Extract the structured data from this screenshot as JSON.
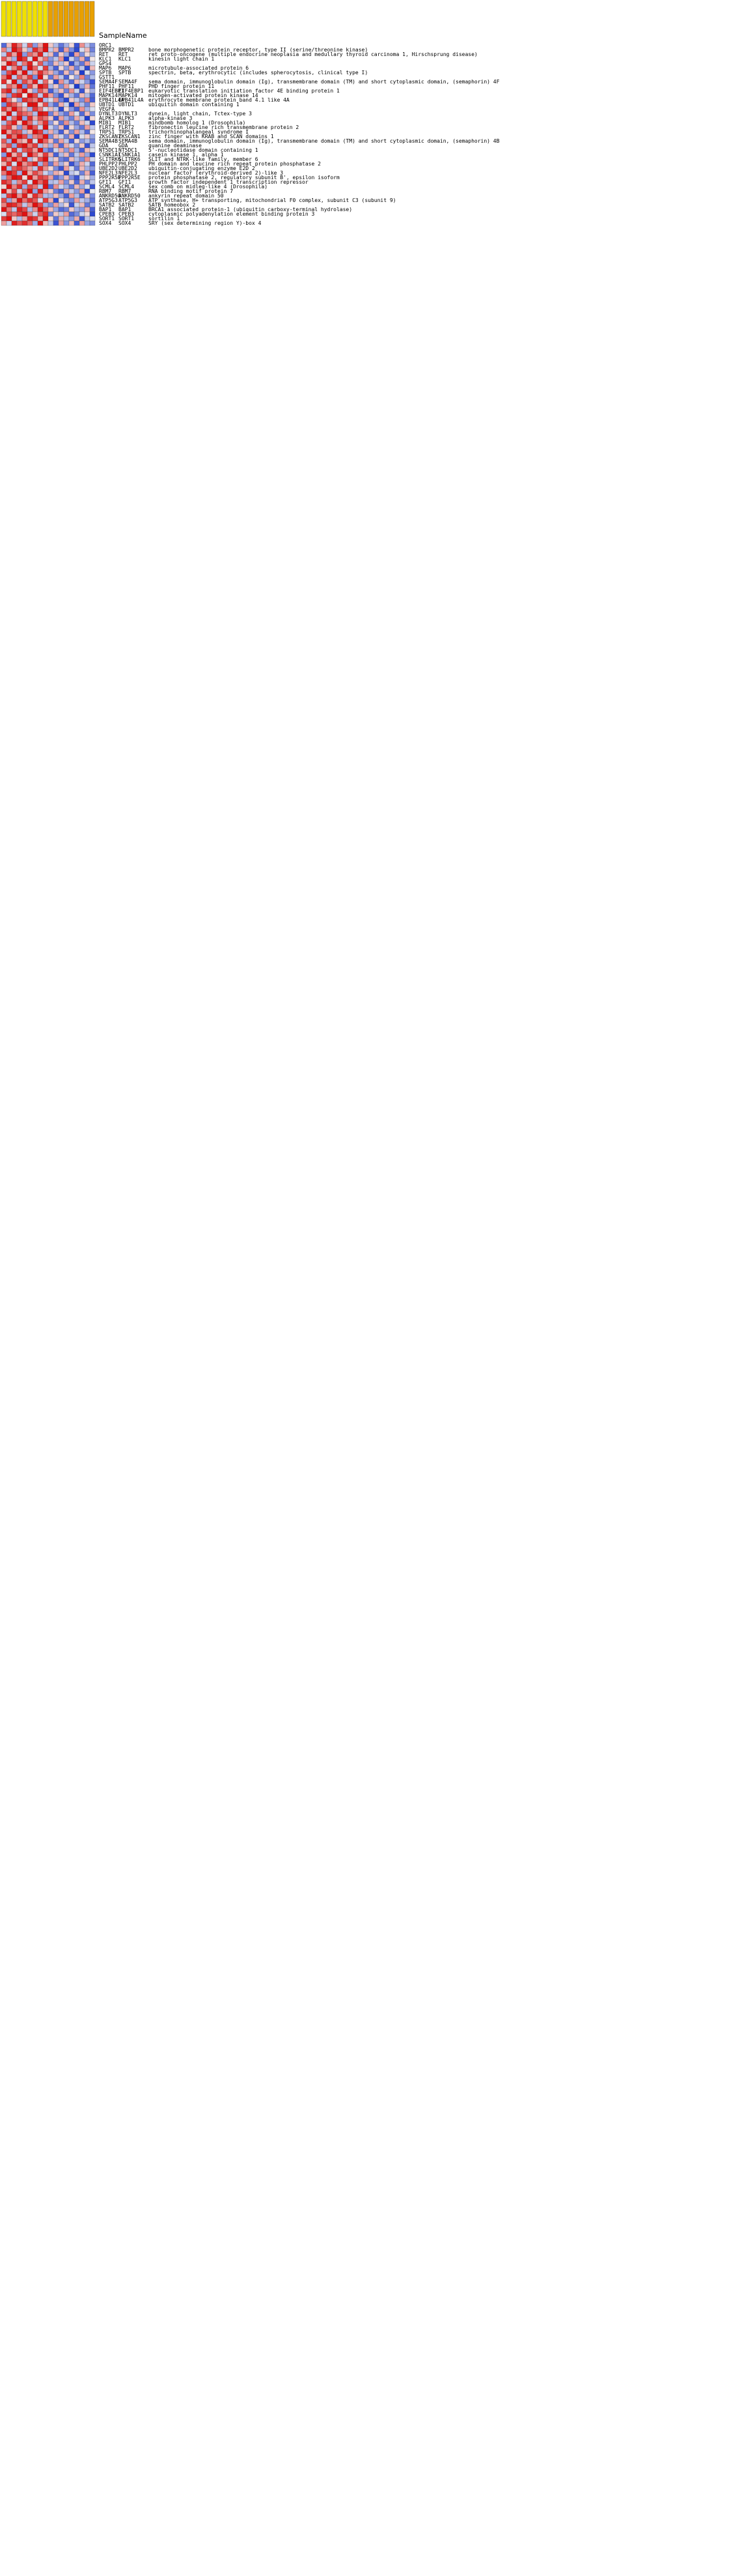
{
  "chart_data": {
    "type": "heatmap",
    "title": "",
    "header": {
      "sample_name_label": "SampleName"
    },
    "columns": [
      "",
      "",
      "",
      "",
      "",
      "",
      "",
      "",
      "",
      "",
      "",
      "",
      "",
      "",
      "",
      "",
      "",
      ""
    ],
    "column_groups": [
      {
        "count": 9,
        "color": "#f0e000"
      },
      {
        "count": 9,
        "color": "#e8a000"
      }
    ],
    "colorscale": {
      "low": "#1f3ccf",
      "mid": "#f4f4f4",
      "high": "#e01010"
    },
    "row_count_shown": 40,
    "rows": [
      {
        "symbol": "ORC1",
        "name": "",
        "values": [
          -1.2,
          0.4,
          1.5,
          0.9,
          -0.3,
          1.1,
          -0.8,
          0.6,
          1.8,
          0.3,
          -0.5,
          -1.1,
          -0.6,
          0.2,
          -1.4,
          0.7,
          -0.4,
          -0.9
        ]
      },
      {
        "symbol": "BMPR2",
        "name": "bone morphogenetic protein receptor, type II (serine/threonine kinase)",
        "values": [
          0.8,
          -0.5,
          1.7,
          1.2,
          0.3,
          -0.6,
          1.4,
          0.9,
          1.6,
          -0.4,
          0.5,
          -1.3,
          0.6,
          -0.9,
          -1.5,
          -0.2,
          0.4,
          -1.0
        ]
      },
      {
        "symbol": "RET",
        "name": "ret proto-oncogene (multiple endocrine neoplasia and medullary thyroid carcinoma 1, Hirschsprung disease)",
        "values": [
          -0.4,
          1.3,
          0.6,
          1.9,
          -0.8,
          1.0,
          0.7,
          1.5,
          -0.3,
          0.4,
          -1.2,
          0.3,
          -0.7,
          -1.5,
          0.6,
          -0.9,
          0.2,
          -0.6
        ]
      },
      {
        "symbol": "KLC1",
        "name": "kinesin light chain 1",
        "values": [
          1.1,
          0.5,
          -0.6,
          1.6,
          1.3,
          -0.2,
          1.8,
          0.4,
          0.9,
          -0.8,
          -0.4,
          0.7,
          -1.6,
          -0.3,
          -0.9,
          0.5,
          -1.2,
          0.1
        ]
      },
      {
        "symbol": "GPS4",
        "name": "",
        "values": [
          0.3,
          1.7,
          1.2,
          -0.4,
          0.9,
          1.5,
          0.2,
          1.1,
          -0.7,
          -1.0,
          0.4,
          -0.5,
          0.3,
          -1.4,
          -0.6,
          -1.1,
          0.6,
          -0.3
        ]
      },
      {
        "symbol": "MAP6",
        "name": "microtubule-associated protein 6",
        "values": [
          1.5,
          -0.3,
          0.8,
          1.4,
          -0.6,
          1.9,
          1.0,
          -0.2,
          1.3,
          -0.6,
          -1.3,
          0.2,
          -0.8,
          0.5,
          -1.0,
          -0.4,
          -1.5,
          0.4
        ]
      },
      {
        "symbol": "SPTB",
        "name": "spectrin, beta, erythrocytic (includes spherocytosis, clinical type I)",
        "values": [
          -0.7,
          1.2,
          1.6,
          0.5,
          1.8,
          -0.5,
          0.6,
          1.4,
          0.8,
          0.5,
          -0.7,
          -1.2,
          0.4,
          -0.9,
          0.3,
          -1.6,
          -0.2,
          -0.8
        ]
      },
      {
        "symbol": "GSTT1",
        "name": "",
        "values": [
          0.9,
          1.6,
          -0.4,
          1.1,
          0.6,
          1.3,
          -0.9,
          1.7,
          0.2,
          -1.1,
          0.6,
          -0.4,
          -1.3,
          0.1,
          -0.7,
          0.8,
          -1.0,
          -0.5
        ]
      },
      {
        "symbol": "SEMA4F",
        "name": "sema domain, immunoglobulin domain (Ig), transmembrane domain (TM) and short cytoplasmic domain, (semaphorin) 4F",
        "values": [
          1.4,
          0.2,
          1.9,
          -0.6,
          1.2,
          0.7,
          1.5,
          -0.3,
          1.0,
          0.2,
          -1.5,
          0.7,
          -0.5,
          -1.2,
          0.4,
          -0.3,
          -0.8,
          -1.4
        ]
      },
      {
        "symbol": "PHF11",
        "name": "PHD finger protein 11",
        "values": [
          -0.2,
          1.0,
          0.7,
          1.8,
          -0.9,
          1.2,
          0.4,
          1.6,
          1.3,
          -0.5,
          0.3,
          -0.9,
          0.6,
          -0.2,
          -1.6,
          -0.7,
          0.5,
          -1.1
        ]
      },
      {
        "symbol": "EIF4EBP1",
        "name": "eukaryotic translation initiation factor 4E binding protein 1",
        "values": [
          1.2,
          1.5,
          -0.5,
          0.9,
          1.7,
          0.3,
          -0.7,
          1.1,
          0.6,
          -1.3,
          -0.6,
          0.4,
          -1.0,
          0.7,
          -0.3,
          -1.4,
          0.2,
          -0.6
        ]
      },
      {
        "symbol": "MAPK14",
        "name": "mitogen-activated protein kinase 14",
        "values": [
          0.6,
          -0.8,
          1.3,
          1.5,
          0.1,
          1.8,
          1.2,
          -0.4,
          1.4,
          0.6,
          -0.9,
          -1.4,
          0.3,
          -0.6,
          -1.1,
          0.4,
          -0.5,
          -1.2
        ]
      },
      {
        "symbol": "EPB41L4A",
        "name": "erythrocyte membrane protein band 4.1 like 4A",
        "values": [
          1.7,
          0.9,
          0.2,
          -0.7,
          1.4,
          1.1,
          0.8,
          1.5,
          -0.5,
          -0.2,
          0.7,
          -1.0,
          -1.5,
          0.3,
          -0.4,
          -0.9,
          0.8,
          -1.3
        ]
      },
      {
        "symbol": "UBTD1",
        "name": "ubiquitin domain containing 1",
        "values": [
          -0.9,
          1.4,
          1.1,
          0.6,
          -0.2,
          1.6,
          1.9,
          0.3,
          1.2,
          -0.7,
          -1.2,
          0.5,
          -0.3,
          -1.6,
          0.6,
          -0.5,
          -1.0,
          0.3
        ]
      },
      {
        "symbol": "VEGFA",
        "name": "",
        "values": [
          1.3,
          0.7,
          1.8,
          1.0,
          0.5,
          -0.6,
          1.3,
          0.9,
          -0.2,
          0.4,
          -0.4,
          -1.5,
          0.2,
          -0.8,
          -1.3,
          0.7,
          -0.6,
          -0.2
        ]
      },
      {
        "symbol": "DYNLT3",
        "name": "dynein, light chain, Tctex-type 3",
        "values": [
          0.4,
          1.9,
          -0.3,
          1.3,
          1.0,
          0.8,
          -0.5,
          1.7,
          1.5,
          -1.0,
          0.5,
          -0.7,
          -1.1,
          0.6,
          -0.2,
          -1.2,
          0.4,
          -0.9
        ]
      },
      {
        "symbol": "ALPK3",
        "name": "alpha-kinase 3",
        "values": [
          1.6,
          -0.4,
          1.0,
          1.7,
          -0.7,
          1.4,
          0.5,
          1.2,
          0.9,
          0.3,
          -1.4,
          0.6,
          -0.6,
          -1.0,
          0.5,
          -0.4,
          -1.6,
          0.2
        ]
      },
      {
        "symbol": "MIB1",
        "name": "mindbomb homolog 1 (Drosophila)",
        "values": [
          -0.5,
          1.1,
          1.5,
          0.3,
          1.9,
          1.0,
          -0.4,
          0.7,
          1.4,
          -0.8,
          0.2,
          -1.1,
          0.7,
          -0.5,
          -1.0,
          0.4,
          -0.3,
          -1.5
        ]
      },
      {
        "symbol": "FLRT2",
        "name": "fibronectin leucine rich transmembrane protein 2",
        "values": [
          1.0,
          1.3,
          0.4,
          -0.8,
          0.8,
          1.7,
          1.1,
          -0.3,
          1.6,
          -0.3,
          -0.8,
          0.4,
          -1.4,
          0.2,
          -0.7,
          -1.1,
          0.6,
          -0.4
        ]
      },
      {
        "symbol": "TRPS1",
        "name": "trichorhinophalangeal syndrome I",
        "values": [
          1.8,
          0.6,
          1.2,
          1.1,
          -0.5,
          0.4,
          1.6,
          1.3,
          -0.6,
          0.5,
          -0.6,
          -1.3,
          0.3,
          -0.9,
          0.6,
          -0.5,
          -1.2,
          0.1
        ]
      },
      {
        "symbol": "ZKSCAN1",
        "name": "zinc finger with KRAB and SCAN domains 1",
        "values": [
          -0.3,
          1.5,
          0.9,
          1.6,
          1.2,
          -0.7,
          0.8,
          1.0,
          1.7,
          -0.9,
          0.4,
          -0.3,
          -1.0,
          0.5,
          -1.5,
          -0.2,
          0.3,
          -0.7
        ]
      },
      {
        "symbol": "SEMA4B",
        "name": "sema domain, immunoglobulin domain (Ig), transmembrane domain (TM) and short cytoplasmic domain, (semaphorin) 4B",
        "values": [
          1.1,
          -0.6,
          1.7,
          0.7,
          0.4,
          1.5,
          -0.2,
          1.8,
          1.0,
          0.4,
          -1.1,
          0.6,
          -0.4,
          -1.3,
          0.2,
          -0.8,
          -0.5,
          -1.0
        ]
      },
      {
        "symbol": "GDA",
        "name": "guanine deaminase",
        "values": [
          0.7,
          1.2,
          -0.7,
          1.4,
          1.6,
          0.9,
          1.3,
          -0.5,
          0.5,
          -0.6,
          0.6,
          -1.2,
          0.5,
          -0.3,
          -0.9,
          0.3,
          -1.4,
          -0.4
        ]
      },
      {
        "symbol": "NT5DC1",
        "name": "5'-nucleotidase domain containing 1",
        "values": [
          1.5,
          0.3,
          1.4,
          -0.4,
          1.1,
          1.3,
          0.6,
          1.6,
          -0.8,
          -1.2,
          -0.3,
          0.5,
          -0.8,
          0.7,
          -0.6,
          -1.3,
          0.4,
          -0.2
        ]
      },
      {
        "symbol": "CSNK1A1",
        "name": "casein kinase 1, alpha 1",
        "values": [
          -0.8,
          1.8,
          0.5,
          1.2,
          -0.3,
          1.6,
          1.0,
          0.4,
          1.3,
          0.5,
          -1.3,
          -0.5,
          0.4,
          -1.1,
          -0.4,
          0.6,
          -0.7,
          -1.5
        ]
      },
      {
        "symbol": "SLITRK6",
        "name": "SLIT and NTRK-like family, member 6",
        "values": [
          1.3,
          0.8,
          1.6,
          0.9,
          1.5,
          -0.5,
          0.3,
          1.2,
          1.8,
          -0.4,
          0.3,
          -1.0,
          -1.2,
          0.4,
          -0.5,
          -0.9,
          0.7,
          -0.3
        ]
      },
      {
        "symbol": "PHLPP2",
        "name": "PH domain and leucine rich repeat protein phosphatase 2",
        "values": [
          0.5,
          1.4,
          -0.2,
          1.7,
          0.7,
          1.1,
          1.5,
          -0.6,
          1.0,
          -1.1,
          0.6,
          -0.6,
          0.3,
          -1.4,
          -0.8,
          0.5,
          -0.3,
          -1.2
        ]
      },
      {
        "symbol": "UBE2D2",
        "name": "ubiquitin-conjugating enzyme E2D 2",
        "values": [
          1.7,
          -0.5,
          1.1,
          1.3,
          1.0,
          0.6,
          -0.4,
          1.4,
          0.7,
          0.2,
          -0.9,
          -1.4,
          0.6,
          -0.2,
          -1.1,
          0.4,
          -0.6,
          -0.8
        ]
      },
      {
        "symbol": "NFE2L3",
        "name": "nuclear factor (erythroid-derived 2)-like 3",
        "values": [
          0.9,
          1.6,
          1.3,
          -0.6,
          1.8,
          0.5,
          1.2,
          0.8,
          -0.3,
          -0.7,
          0.5,
          0.3,
          -1.5,
          -0.4,
          -0.2,
          -1.0,
          0.5,
          -1.3
        ]
      },
      {
        "symbol": "PPP2R5E",
        "name": "protein phosphatase 2, regulatory subunit B', epsilon isoform",
        "values": [
          -0.6,
          1.0,
          1.7,
          1.5,
          0.2,
          1.9,
          0.6,
          1.3,
          1.1,
          0.6,
          -1.2,
          -0.8,
          0.4,
          -0.9,
          -1.4,
          -0.3,
          0.2,
          -0.6
        ]
      },
      {
        "symbol": "GFI1",
        "name": "growth factor independent 1 transcription repressor",
        "values": [
          1.4,
          1.1,
          -0.5,
          0.8,
          1.3,
          -0.2,
          1.7,
          1.0,
          1.5,
          -0.5,
          -0.4,
          0.6,
          -0.9,
          0.3,
          -1.2,
          0.5,
          -1.0,
          -0.4
        ]
      },
      {
        "symbol": "SCML4",
        "name": "sex comb on midleg-like 4 (Drosophila)",
        "values": [
          0.2,
          1.7,
          0.8,
          1.4,
          -0.6,
          1.2,
          0.9,
          -0.4,
          1.6,
          -1.2,
          0.7,
          -0.3,
          -0.6,
          -1.1,
          0.4,
          -0.7,
          -0.2,
          -1.4
        ]
      },
      {
        "symbol": "RBM7",
        "name": "RNA binding motif protein 7",
        "values": [
          1.9,
          0.4,
          1.2,
          -0.3,
          1.0,
          1.6,
          -0.7,
          1.5,
          0.6,
          0.3,
          -1.0,
          -1.3,
          0.5,
          -0.4,
          -0.8,
          0.6,
          -1.5,
          -0.1
        ]
      },
      {
        "symbol": "ANKRD50",
        "name": "ankyrin repeat domain 50",
        "values": [
          -0.4,
          1.3,
          1.9,
          0.7,
          1.5,
          0.3,
          1.4,
          0.9,
          -0.5,
          -0.6,
          0.4,
          -0.7,
          -1.3,
          0.6,
          -0.5,
          -1.2,
          0.3,
          -0.9
        ]
      },
      {
        "symbol": "ATP5G3",
        "name": "ATP synthase, H+ transporting, mitochondrial F0 complex, subunit C3 (subunit 9)",
        "values": [
          1.2,
          -0.7,
          0.6,
          1.8,
          0.9,
          1.4,
          1.1,
          -0.2,
          1.3,
          0.5,
          -1.5,
          0.2,
          -0.7,
          -1.0,
          0.6,
          -0.4,
          -0.6,
          -1.1
        ]
      },
      {
        "symbol": "SATB2",
        "name": "SATB homeobox 2",
        "values": [
          0.8,
          1.5,
          1.4,
          1.0,
          -0.4,
          0.7,
          1.6,
          1.2,
          -0.6,
          -0.9,
          0.6,
          -0.5,
          0.2,
          -1.4,
          -0.3,
          0.4,
          -1.1,
          -0.6
        ]
      },
      {
        "symbol": "BAP1",
        "name": "BRCA1 associated protein-1 (ubiquitin carboxy-terminal hydrolase)",
        "values": [
          1.6,
          0.9,
          -0.4,
          1.5,
          1.2,
          -0.5,
          0.7,
          1.7,
          1.0,
          0.4,
          -0.7,
          -1.2,
          -1.0,
          0.3,
          -0.6,
          -0.8,
          0.5,
          -1.3
        ]
      },
      {
        "symbol": "CPEB3",
        "name": "cytoplasmic polyadenylation element binding protein 3",
        "values": [
          -0.2,
          1.2,
          1.0,
          1.3,
          1.7,
          0.8,
          -0.3,
          1.1,
          1.4,
          -1.0,
          0.3,
          -0.4,
          0.6,
          -1.2,
          -0.9,
          -0.3,
          0.2,
          -1.5
        ]
      },
      {
        "symbol": "SORT1",
        "name": "sortilin 1",
        "values": [
          1.3,
          1.8,
          0.3,
          -0.5,
          0.6,
          1.5,
          1.3,
          0.5,
          1.7,
          0.2,
          -1.1,
          0.5,
          -0.5,
          -0.8,
          0.5,
          -1.4,
          -0.4,
          -0.2
        ]
      },
      {
        "symbol": "SOX4",
        "name": "SRY (sex determining region Y)-box 4",
        "values": [
          0.6,
          -0.3,
          1.5,
          1.1,
          1.4,
          1.0,
          -0.6,
          1.8,
          0.4,
          -0.4,
          -1.4,
          0.6,
          -0.8,
          0.4,
          -1.3,
          0.6,
          -0.7,
          -0.9
        ]
      }
    ]
  }
}
